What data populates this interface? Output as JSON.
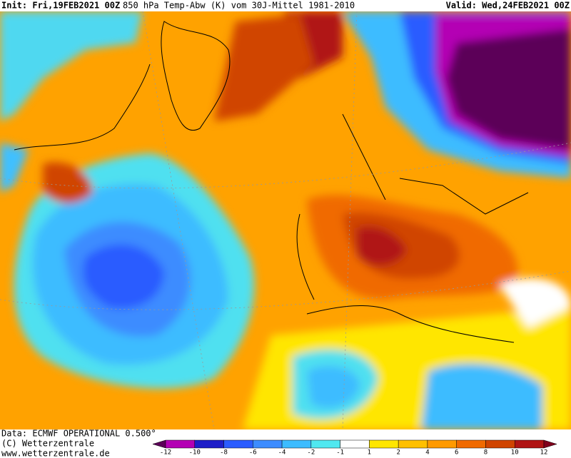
{
  "header": {
    "init": "Init: Fri,19FEB2021 00Z",
    "title": "850 hPa Temp-Abw (K) vom 30J-Mittel 1981-2010",
    "valid": "Valid: Wed,24FEB2021 00Z"
  },
  "footer": {
    "source": "Data: ECMWF OPERATIONAL 0.500°",
    "copyright": "(C) Wetterzentrale",
    "url": "www.wetterzentrale.de"
  },
  "colorbar": {
    "labels": [
      "-12",
      "-10",
      "-8",
      "-6",
      "-4",
      "-2",
      "-1",
      "1",
      "2",
      "4",
      "6",
      "8",
      "10",
      "12"
    ],
    "colors": [
      "#5c0058",
      "#b400b4",
      "#1e1ec8",
      "#2a5cff",
      "#3c8cff",
      "#3cbcff",
      "#50e8f0",
      "#ffffff",
      "#ffe600",
      "#ffc000",
      "#ff9a00",
      "#f06a00",
      "#d04400",
      "#b01414",
      "#80001c"
    ]
  }
}
